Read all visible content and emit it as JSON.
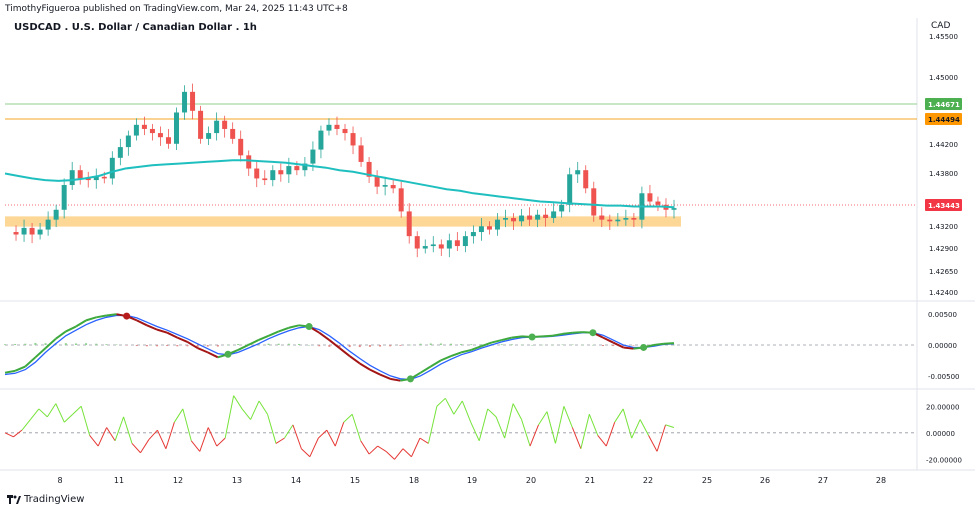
{
  "header": {
    "publish_line": "TimothyFigueroa published on TradingView.com, Mar 24, 2025 11:43 UTC+8",
    "title": "USDCAD . U.S. Dollar / Canadian Dollar . 1h",
    "currency": "CAD"
  },
  "footer": {
    "brand": "TradingView"
  },
  "colors": {
    "up": "#26a69a",
    "down": "#ef5350",
    "ema": "#1fbfbf",
    "green_line": "#8fcf8f",
    "orange_line": "#f5a623",
    "zone": "#fcd796",
    "badge_green": "#4caf50",
    "badge_orange": "#ff9800",
    "badge_red": "#f23645",
    "wt_green": "#3da93d",
    "wt_red": "#a31515",
    "wt_blue": "#2962ff",
    "rsi_green": "#76e33a",
    "rsi_red": "#e53935"
  },
  "chart_data": [
    {
      "type": "candlestick",
      "price_axis_ticks": [
        "1.45500",
        "1.45000",
        "1.44200",
        "1.43800",
        "1.43200",
        "1.42900",
        "1.42650",
        "1.42400"
      ],
      "x_axis_ticks": [
        "8",
        "11",
        "12",
        "13",
        "14",
        "15",
        "18",
        "19",
        "20",
        "21",
        "22",
        "25",
        "26",
        "27",
        "28"
      ],
      "ylim": [
        1.4235,
        1.456
      ],
      "levels": [
        {
          "name": "resistance-green",
          "value": 1.44671,
          "label": "1.44671"
        },
        {
          "name": "resistance-orange",
          "value": 1.44494,
          "label": "1.44494"
        },
        {
          "name": "current-price",
          "value": 1.43443,
          "label": "1.43443"
        }
      ],
      "support_zone": [
        1.4324,
        1.4334
      ],
      "close_path": [
        1.4315,
        1.4312,
        1.432,
        1.4312,
        1.4318,
        1.433,
        1.4342,
        1.4372,
        1.439,
        1.438,
        1.4378,
        1.4382,
        1.438,
        1.4405,
        1.4418,
        1.4432,
        1.4445,
        1.444,
        1.4435,
        1.443,
        1.4422,
        1.446,
        1.4485,
        1.4462,
        1.4428,
        1.4435,
        1.445,
        1.444,
        1.4428,
        1.4408,
        1.4392,
        1.438,
        1.4378,
        1.439,
        1.4385,
        1.4395,
        1.439,
        1.4398,
        1.4415,
        1.4438,
        1.4445,
        1.444,
        1.4435,
        1.442,
        1.44,
        1.4382,
        1.437,
        1.4372,
        1.4368,
        1.434,
        1.431,
        1.4295,
        1.4298,
        1.43,
        1.4295,
        1.4305,
        1.4298,
        1.431,
        1.4315,
        1.4322,
        1.4318,
        1.433,
        1.4332,
        1.4328,
        1.4335,
        1.433,
        1.4336,
        1.4332,
        1.434,
        1.4348,
        1.4385,
        1.439,
        1.4368,
        1.4335,
        1.433,
        1.4328,
        1.433,
        1.4332,
        1.433,
        1.4362,
        1.4352,
        1.4348,
        1.4342,
        1.4344
      ],
      "ema_path": [
        1.4386,
        1.4383,
        1.438,
        1.4378,
        1.4377,
        1.4378,
        1.438,
        1.4383,
        1.4388,
        1.4392,
        1.4394,
        1.4396,
        1.4397,
        1.4398,
        1.4399,
        1.44,
        1.4401,
        1.4402,
        1.4402,
        1.4401,
        1.44,
        1.4399,
        1.4397,
        1.4395,
        1.4393,
        1.439,
        1.4388,
        1.4385,
        1.4382,
        1.4379,
        1.4376,
        1.4373,
        1.437,
        1.4367,
        1.4365,
        1.4362,
        1.436,
        1.4358,
        1.4356,
        1.4354,
        1.4352,
        1.4351,
        1.435,
        1.4349,
        1.4348,
        1.4347,
        1.4347,
        1.4346,
        1.4346,
        1.4346,
        1.4345
      ],
      "ema_period_series": "EMA"
    },
    {
      "type": "line",
      "name_hint": "wave-oscillator",
      "y_ticks": [
        "0.00500",
        "0.00000",
        "-0.00500"
      ],
      "ylim": [
        -0.0065,
        0.0065
      ],
      "fast": [
        -0.0045,
        -0.0042,
        -0.0035,
        -0.002,
        -0.0005,
        0.001,
        0.0022,
        0.003,
        0.004,
        0.0045,
        0.0048,
        0.005,
        0.0047,
        0.004,
        0.0032,
        0.0025,
        0.002,
        0.0012,
        0.0005,
        -0.0005,
        -0.0012,
        -0.002,
        -0.0015,
        -0.0008,
        0.0,
        0.0008,
        0.0015,
        0.0022,
        0.0028,
        0.0032,
        0.003,
        0.002,
        0.0008,
        -0.0005,
        -0.0018,
        -0.003,
        -0.004,
        -0.0048,
        -0.0055,
        -0.0058,
        -0.0055,
        -0.0045,
        -0.0035,
        -0.0025,
        -0.0018,
        -0.0012,
        -0.0008,
        -0.0002,
        0.0004,
        0.0008,
        0.0012,
        0.0014,
        0.0013,
        0.0014,
        0.0015,
        0.0018,
        0.002,
        0.0021,
        0.002,
        0.0012,
        0.0004,
        -0.0004,
        -0.0006,
        -0.0004,
        0.0,
        0.0002,
        0.0003
      ],
      "slow": [
        -0.0048,
        -0.0046,
        -0.004,
        -0.0028,
        -0.0012,
        0.0002,
        0.0015,
        0.0024,
        0.0033,
        0.004,
        0.0045,
        0.0048,
        0.0048,
        0.0044,
        0.0037,
        0.003,
        0.0024,
        0.0017,
        0.001,
        0.0002,
        -0.0006,
        -0.0014,
        -0.0016,
        -0.0012,
        -0.0005,
        0.0002,
        0.001,
        0.0017,
        0.0023,
        0.0028,
        0.003,
        0.0025,
        0.0015,
        0.0003,
        -0.001,
        -0.0022,
        -0.0033,
        -0.0042,
        -0.005,
        -0.0055,
        -0.0056,
        -0.005,
        -0.0041,
        -0.0031,
        -0.0023,
        -0.0016,
        -0.0011,
        -0.0005,
        0.0,
        0.0005,
        0.0009,
        0.0012,
        0.0013,
        0.0013,
        0.0014,
        0.0016,
        0.0018,
        0.002,
        0.002,
        0.0016,
        0.0008,
        0.0,
        -0.0004,
        -0.0004,
        -0.0002,
        0.0001,
        0.0002
      ]
    },
    {
      "type": "line",
      "name_hint": "momentum-oscillator",
      "y_ticks": [
        "20.00000",
        "0.00000",
        "-20.00000"
      ],
      "ylim": [
        -25,
        30
      ],
      "values": [
        0,
        -3,
        2,
        10,
        18,
        12,
        22,
        8,
        14,
        20,
        -2,
        -10,
        4,
        -6,
        12,
        -8,
        -15,
        -5,
        2,
        -12,
        8,
        18,
        -6,
        -14,
        4,
        -10,
        -4,
        28,
        18,
        10,
        24,
        14,
        -8,
        -4,
        6,
        -12,
        -18,
        -4,
        2,
        -10,
        8,
        14,
        -6,
        -16,
        -10,
        -14,
        -20,
        -12,
        -18,
        -4,
        -8,
        20,
        26,
        14,
        24,
        8,
        -6,
        18,
        12,
        -4,
        22,
        10,
        -10,
        6,
        16,
        -8,
        20,
        4,
        -12,
        14,
        -2,
        -10,
        8,
        18,
        -4,
        10,
        -2,
        -14,
        6,
        4
      ]
    }
  ]
}
